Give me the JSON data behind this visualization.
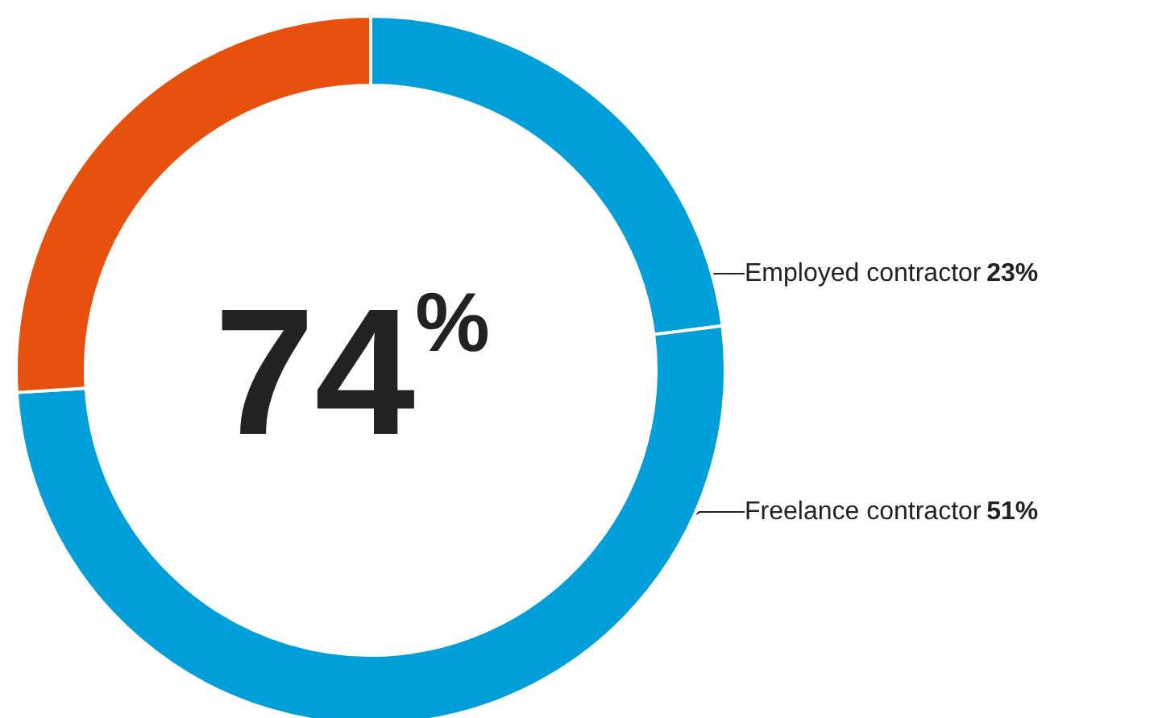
{
  "chart_data": {
    "type": "donut",
    "categories": [
      "Employed contractor",
      "Freelance contractor",
      null
    ],
    "values": [
      23,
      51,
      26
    ],
    "colors": [
      "#009fd9",
      "#009fd9",
      "#e8500e"
    ],
    "value_labels": [
      "23%",
      "51%",
      null
    ],
    "annotations": [
      "74%"
    ],
    "legend": false
  }
}
